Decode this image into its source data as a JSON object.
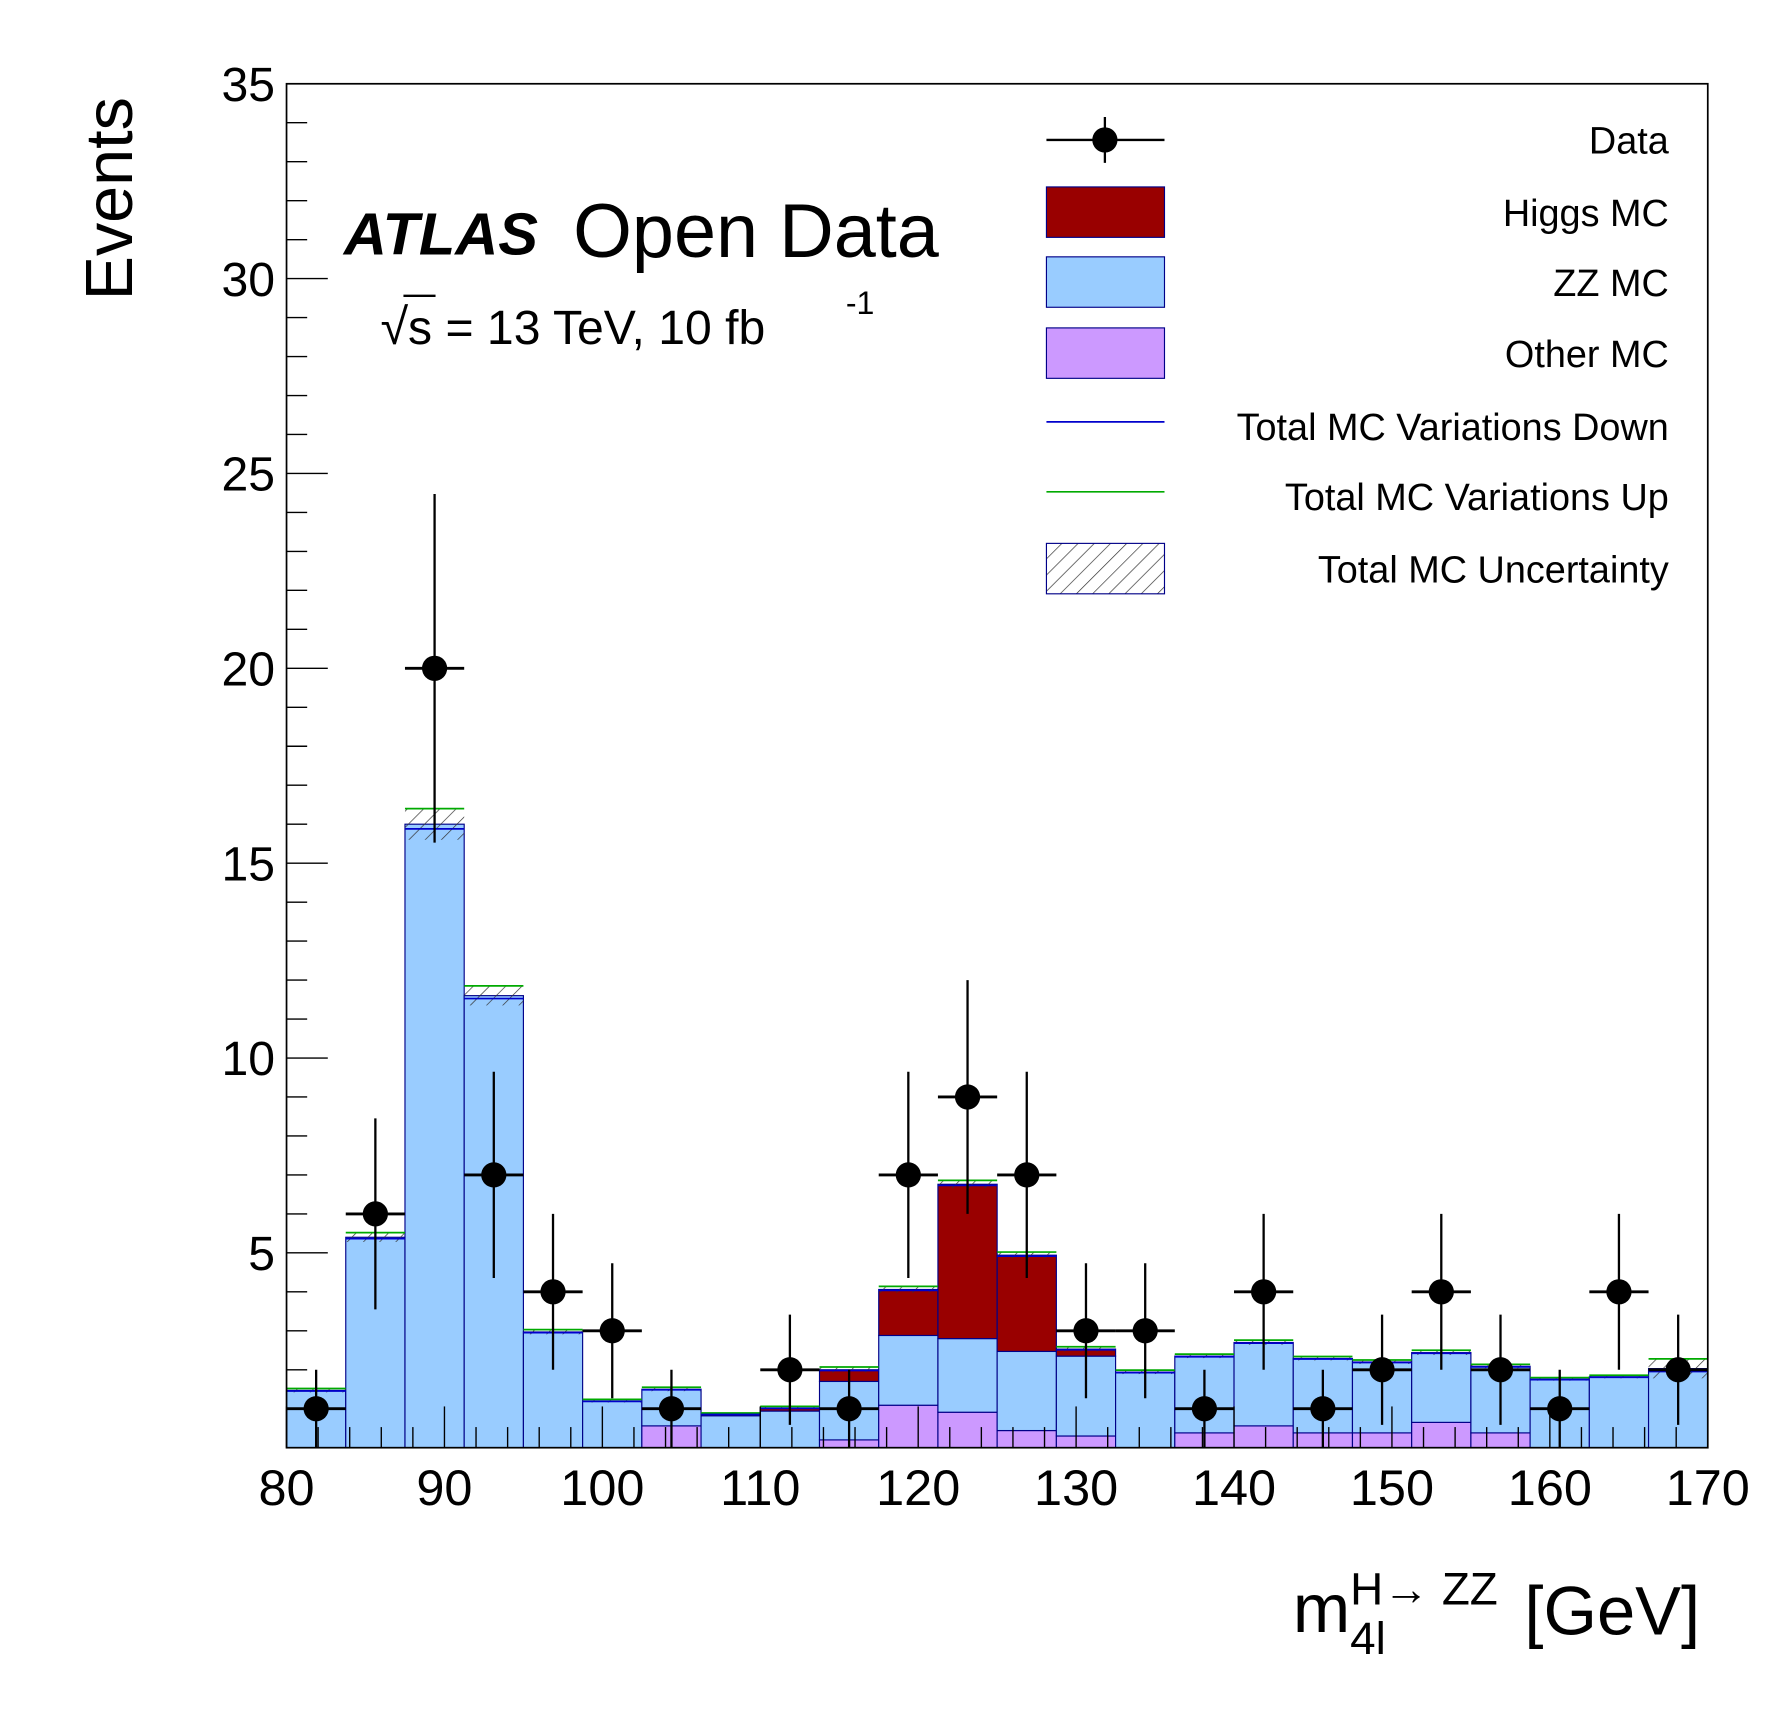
{
  "chart_data": {
    "type": "bar",
    "subtype": "stacked-histogram",
    "title": "ATLAS Open Data",
    "brand": "ATLAS",
    "title_rest": "Open Data",
    "subtitle": "√s = 13 TeV, 10 fb",
    "subtitle_sqrt": "√",
    "subtitle_s": "s = 13 TeV, 10 fb",
    "subtitle_exp": "-1",
    "xlabel": "[GeV]",
    "xlabel_main": "m",
    "xlabel_sup": "H→ ZZ",
    "xlabel_sub": "4l",
    "ylabel": "Events",
    "xlim": [
      80,
      170
    ],
    "ylim": [
      0,
      35
    ],
    "x_ticks": [
      "80",
      "90",
      "100",
      "110",
      "120",
      "130",
      "140",
      "150",
      "160",
      "170"
    ],
    "y_ticks": [
      "5",
      "10",
      "15",
      "20",
      "25",
      "30",
      "35"
    ],
    "bin_edges_start": 80,
    "bin_width": 3.75,
    "series": [
      {
        "name": "Other MC",
        "color": "#cc99ff",
        "values": [
          0,
          0,
          0,
          0,
          0,
          0,
          0.56,
          0,
          0,
          0.2,
          1.09,
          0.91,
          0.44,
          0.3,
          0,
          0.38,
          0.56,
          0.38,
          0.38,
          0.65,
          0.38,
          0,
          0,
          0
        ]
      },
      {
        "name": "ZZ MC",
        "color": "#99ccff",
        "values": [
          1.47,
          5.4,
          16.0,
          11.6,
          2.97,
          1.2,
          0.94,
          0.82,
          0.94,
          1.5,
          1.79,
          1.89,
          2.03,
          2.05,
          1.94,
          1.97,
          2.14,
          1.91,
          1.82,
          1.79,
          1.71,
          1.76,
          1.82,
          2.03
        ]
      },
      {
        "name": "Higgs MC",
        "color": "#990000",
        "values": [
          0,
          0,
          0,
          0,
          0,
          0,
          0,
          0.04,
          0.08,
          0.3,
          1.18,
          3.96,
          2.47,
          0.18,
          0,
          0,
          0,
          0,
          0,
          0,
          0,
          0,
          0,
          0
        ]
      }
    ],
    "uncertainty": [
      0.05,
      0.12,
      0.4,
      0.25,
      0.06,
      0.04,
      0.05,
      0.03,
      0.04,
      0.07,
      0.08,
      0.1,
      0.08,
      0.06,
      0.05,
      0.05,
      0.06,
      0.05,
      0.05,
      0.06,
      0.05,
      0.04,
      0.04,
      0.25
    ],
    "data": {
      "name": "Data",
      "values": [
        1,
        6,
        20,
        7,
        4,
        3,
        1,
        0,
        2,
        1,
        7,
        9,
        7,
        3,
        3,
        1,
        4,
        1,
        2,
        4,
        2,
        1,
        4,
        2
      ]
    },
    "legend": [
      {
        "label": "Data",
        "kind": "marker"
      },
      {
        "label": "Higgs MC",
        "kind": "fill",
        "color": "#990000"
      },
      {
        "label": "ZZ MC",
        "kind": "fill",
        "color": "#99ccff"
      },
      {
        "label": "Other MC",
        "kind": "fill",
        "color": "#cc99ff"
      },
      {
        "label": "Total MC Variations Down",
        "kind": "line",
        "color": "#0000cc"
      },
      {
        "label": "Total MC Variations Up",
        "kind": "line",
        "color": "#00aa00"
      },
      {
        "label": "Total MC Uncertainty",
        "kind": "hatch"
      }
    ],
    "legend_position": "top-right",
    "grid": false
  }
}
